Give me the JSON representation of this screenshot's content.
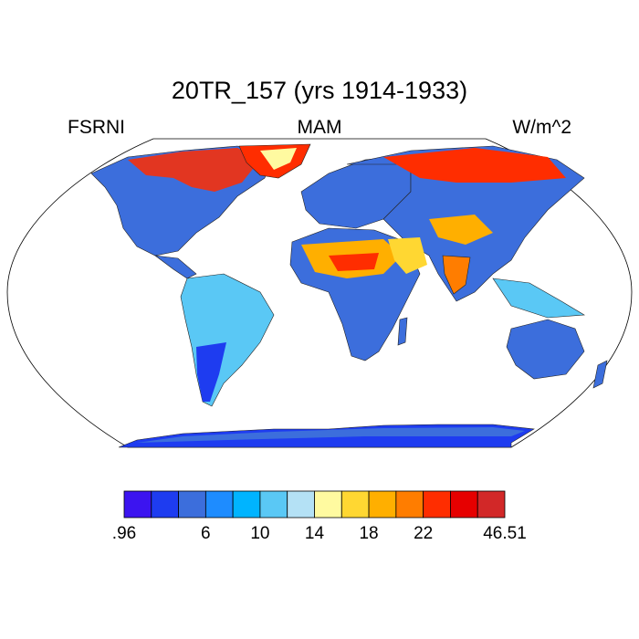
{
  "title": "20TR_157 (yrs 1914-1933)",
  "left_label": "FSRNI",
  "center_label": "MAM",
  "right_label": "W/m^2",
  "colorbar": {
    "colors": [
      "#3c14f0",
      "#1e3cf0",
      "#3c6edc",
      "#1e8cff",
      "#00b4ff",
      "#5ac8f5",
      "#b4e1f5",
      "#fffaa0",
      "#ffd732",
      "#ffaf00",
      "#ff7d00",
      "#ff2d00",
      "#e60000",
      "#d22828"
    ],
    "tick_labels": [
      ".96",
      "6",
      "10",
      "14",
      "18",
      "22",
      "46.51"
    ]
  },
  "map": {
    "projection": "Robinson",
    "land_field_description_colors": {
      "cold": "#3c6edc",
      "mid": "#5ac8f5",
      "hot": "#ff2d00"
    }
  }
}
